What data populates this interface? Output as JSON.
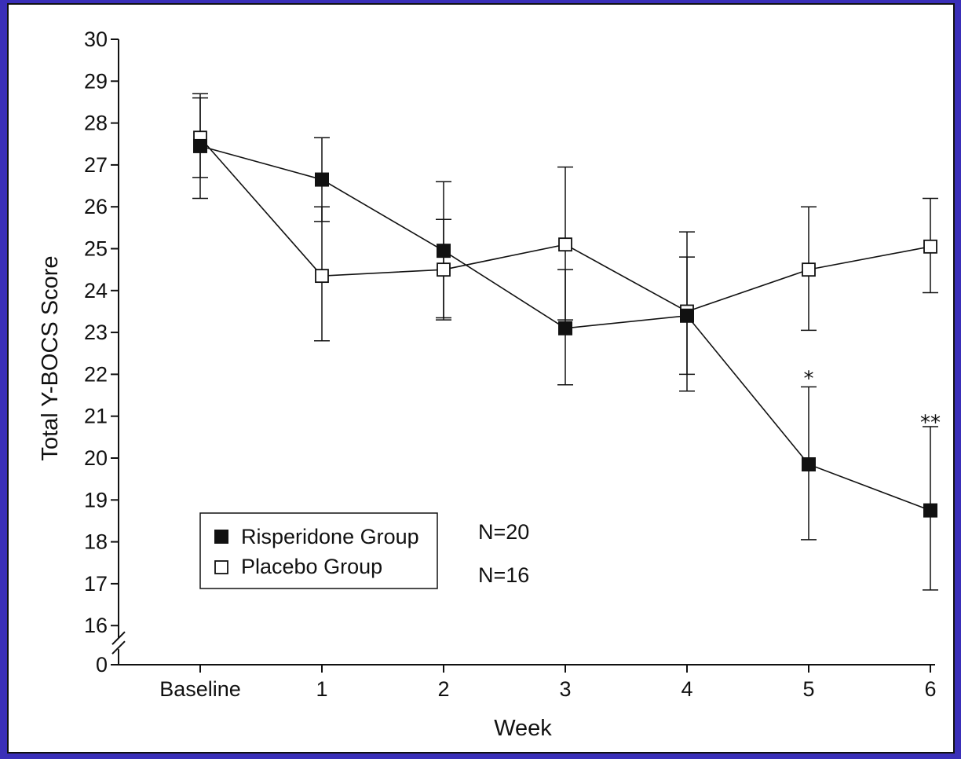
{
  "chart_data": {
    "type": "line",
    "title": "",
    "xlabel": "Week",
    "ylabel": "Total Y-BOCS Score",
    "categories": [
      "Baseline",
      "1",
      "2",
      "3",
      "4",
      "5",
      "6"
    ],
    "y_ticks": [
      "0",
      "16",
      "17",
      "18",
      "19",
      "20",
      "21",
      "22",
      "23",
      "24",
      "25",
      "26",
      "27",
      "28",
      "29",
      "30"
    ],
    "ylim": [
      16,
      30
    ],
    "y_axis_break": true,
    "grid": false,
    "series": [
      {
        "name": "Risperidone Group",
        "marker": "filled-square",
        "values": [
          27.45,
          26.65,
          24.95,
          23.1,
          23.4,
          19.85,
          18.75
        ],
        "err_upper": [
          28.7,
          27.65,
          26.6,
          24.5,
          24.8,
          21.7,
          20.75
        ],
        "err_lower": [
          26.2,
          25.65,
          23.35,
          21.75,
          22.0,
          18.05,
          16.85
        ]
      },
      {
        "name": "Placebo Group",
        "marker": "open-square",
        "values": [
          27.65,
          24.35,
          24.5,
          25.1,
          23.5,
          24.5,
          25.05
        ],
        "err_upper": [
          28.6,
          26.0,
          25.7,
          26.95,
          25.4,
          26.0,
          26.2
        ],
        "err_lower": [
          26.7,
          22.8,
          23.3,
          23.3,
          21.6,
          23.05,
          23.95
        ]
      }
    ],
    "legend_position": "bottom-left",
    "annotations": [
      {
        "text": "N=20",
        "series": "Risperidone Group"
      },
      {
        "text": "N=16",
        "series": "Placebo Group"
      }
    ],
    "significance": [
      {
        "category": "5",
        "text": "*",
        "y": 22.0
      },
      {
        "category": "6",
        "text": "**",
        "y": 20.95
      }
    ],
    "colors": {
      "line": "#111111",
      "filled": "#111111",
      "open": "#ffffff",
      "frame_border": "#3a2fb8"
    }
  }
}
